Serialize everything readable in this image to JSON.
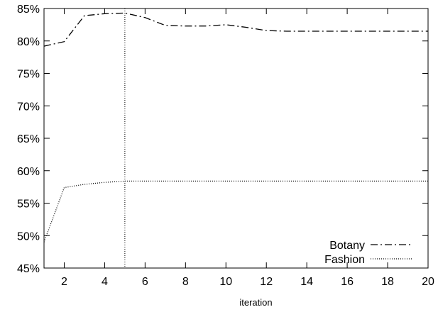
{
  "chart_data": {
    "type": "line",
    "title": "",
    "xlabel": "iteration",
    "ylabel": "",
    "xlim": [
      1,
      20
    ],
    "ylim": [
      45,
      85
    ],
    "x_ticks": [
      2,
      4,
      6,
      8,
      10,
      12,
      14,
      16,
      18,
      20
    ],
    "y_ticks": [
      45,
      50,
      55,
      60,
      65,
      70,
      75,
      80,
      85
    ],
    "y_tick_labels": [
      "45%",
      "50%",
      "55%",
      "60%",
      "65%",
      "70%",
      "75%",
      "80%",
      "85%"
    ],
    "grid": false,
    "legend_position": "bottom-right",
    "annotations": [
      {
        "type": "vertical-line",
        "x": 5,
        "style": "dotted"
      }
    ],
    "series": [
      {
        "name": "Botany",
        "style": "dash-dot",
        "color": "#000000",
        "x": [
          1,
          2,
          3,
          4,
          5,
          6,
          7,
          8,
          9,
          10,
          11,
          12,
          13,
          14,
          15,
          16,
          17,
          18,
          19,
          20
        ],
        "y": [
          79.2,
          79.9,
          83.9,
          84.2,
          84.3,
          83.6,
          82.4,
          82.3,
          82.3,
          82.5,
          82.1,
          81.6,
          81.5,
          81.5,
          81.5,
          81.5,
          81.5,
          81.5,
          81.5,
          81.5
        ]
      },
      {
        "name": "Fashion",
        "style": "dotted",
        "color": "#000000",
        "x": [
          1,
          2,
          3,
          4,
          5,
          6,
          7,
          8,
          9,
          10,
          11,
          12,
          13,
          14,
          15,
          16,
          17,
          18,
          19,
          20
        ],
        "y": [
          49.0,
          57.4,
          57.9,
          58.2,
          58.4,
          58.4,
          58.4,
          58.4,
          58.4,
          58.4,
          58.4,
          58.4,
          58.4,
          58.4,
          58.4,
          58.4,
          58.4,
          58.4,
          58.4,
          58.4
        ]
      }
    ]
  }
}
